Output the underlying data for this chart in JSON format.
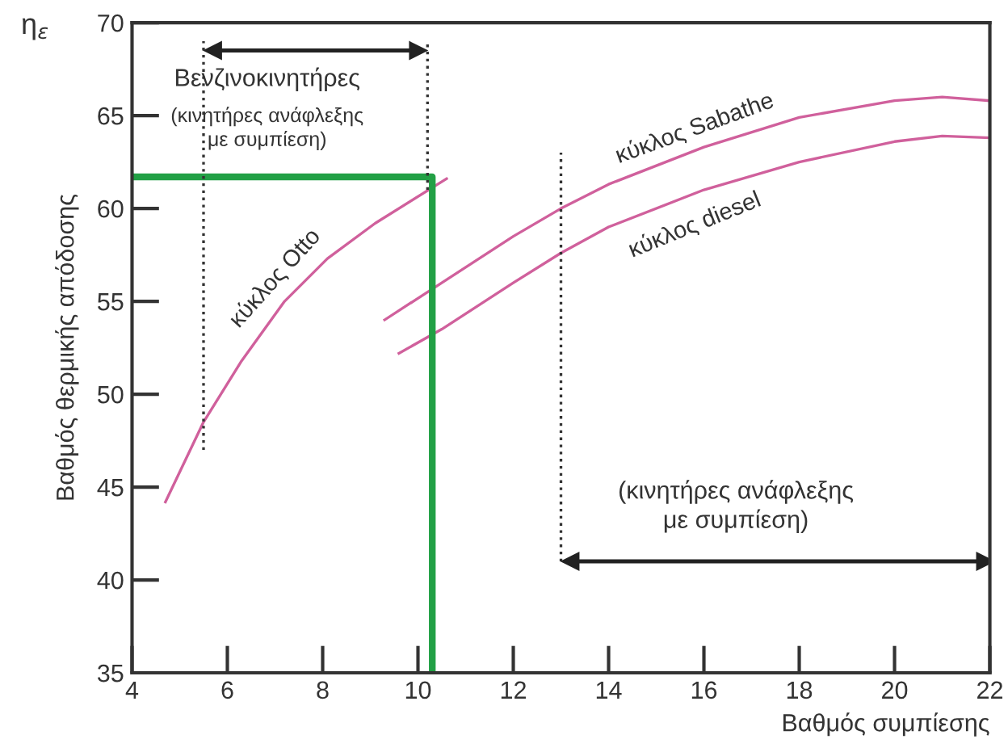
{
  "chart_data": {
    "type": "line",
    "xlabel": "Βαθμός συμπίεσης",
    "ylabel": "Βαθμός θερμικής απόδοσης",
    "xlim": [
      4,
      22
    ],
    "ylim": [
      35,
      70
    ],
    "xticks": [
      4,
      6,
      8,
      10,
      12,
      14,
      16,
      18,
      20,
      22
    ],
    "yticks": [
      35,
      40,
      45,
      50,
      55,
      60,
      65,
      70
    ],
    "grid": false,
    "legend": false,
    "marker": "none",
    "series": [
      {
        "name": "κύκλος Otto",
        "color": "#d0609c",
        "x": [
          4.7,
          5.5,
          6.3,
          7.2,
          8.1,
          9.1,
          10.6
        ],
        "values": [
          44.2,
          48.5,
          51.8,
          55,
          57.3,
          59.2,
          61.6
        ]
      },
      {
        "name": "κύκλος Sabathe",
        "color": "#d0609c",
        "x": [
          9.3,
          10.5,
          12,
          13,
          14,
          16,
          18,
          20,
          21,
          22
        ],
        "values": [
          54,
          56,
          58.5,
          60,
          61.3,
          63.3,
          64.9,
          65.8,
          66,
          65.8
        ]
      },
      {
        "name": "κύκλος diesel",
        "color": "#d0609c",
        "x": [
          9.6,
          10.5,
          12,
          13,
          14,
          16,
          18,
          20,
          21,
          22
        ],
        "values": [
          52.2,
          53.5,
          56,
          57.6,
          59,
          61,
          62.5,
          63.6,
          63.9,
          63.8
        ]
      },
      {
        "color": "#22a045",
        "x": [
          4,
          10.3,
          10.3
        ],
        "values": [
          61.7,
          61.7,
          35
        ]
      },
      {
        "color": "#333333",
        "line_style": "dotted",
        "x": [
          5.5,
          5.5
        ],
        "values": [
          47,
          69
        ]
      },
      {
        "color": "#333333",
        "line_style": "dotted",
        "x": [
          10.2,
          10.2
        ],
        "values": [
          61,
          69
        ]
      },
      {
        "color": "#333333",
        "line_style": "dotted",
        "x": [
          13,
          13
        ],
        "values": [
          41,
          63
        ]
      },
      {
        "color": "#222222",
        "marker": "triangle",
        "x": [
          5.7,
          10
        ],
        "values": [
          68.5,
          68.5
        ]
      },
      {
        "color": "#222222",
        "marker": "triangle",
        "x": [
          13.2,
          21.9
        ],
        "values": [
          41,
          41
        ]
      }
    ],
    "annotations": [
      "η$_{ε}$",
      "Βενζινοκινητήρες",
      "(κινητήρες ανάφλεξης\nμε συμπίεση)",
      "(κινητήρες ανάφλεξης\nμε συμπίεση)"
    ]
  }
}
